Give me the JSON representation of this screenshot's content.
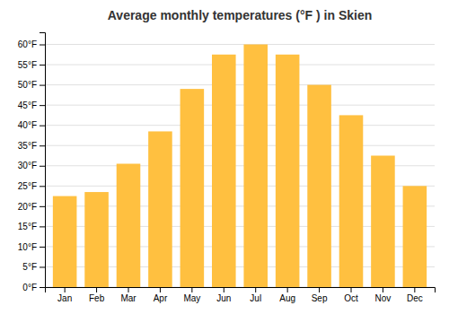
{
  "chart_data": {
    "type": "bar",
    "title": "Average monthly temperatures (°F ) in Skien",
    "categories": [
      "Jan",
      "Feb",
      "Mar",
      "Apr",
      "May",
      "Jun",
      "Jul",
      "Aug",
      "Sep",
      "Oct",
      "Nov",
      "Dec"
    ],
    "values": [
      22.5,
      23.5,
      30.5,
      38.5,
      49.0,
      57.5,
      60.0,
      57.5,
      50.0,
      42.5,
      32.5,
      25.0
    ],
    "color": "#FFC040",
    "ylim": [
      0,
      63
    ],
    "yticks": [
      {
        "value": 0,
        "label": "0°F"
      },
      {
        "value": 5,
        "label": "5°F"
      },
      {
        "value": 10,
        "label": "10°F"
      },
      {
        "value": 15,
        "label": "15°F"
      },
      {
        "value": 20,
        "label": "20°F"
      },
      {
        "value": 25,
        "label": "25°F"
      },
      {
        "value": 30,
        "label": "30°F"
      },
      {
        "value": 35,
        "label": "35°F"
      },
      {
        "value": 40,
        "label": "40°F"
      },
      {
        "value": 45,
        "label": "45°F"
      },
      {
        "value": 50,
        "label": "50°F"
      },
      {
        "value": 55,
        "label": "55°F"
      },
      {
        "value": 60,
        "label": "60°F"
      }
    ],
    "grid": true
  }
}
